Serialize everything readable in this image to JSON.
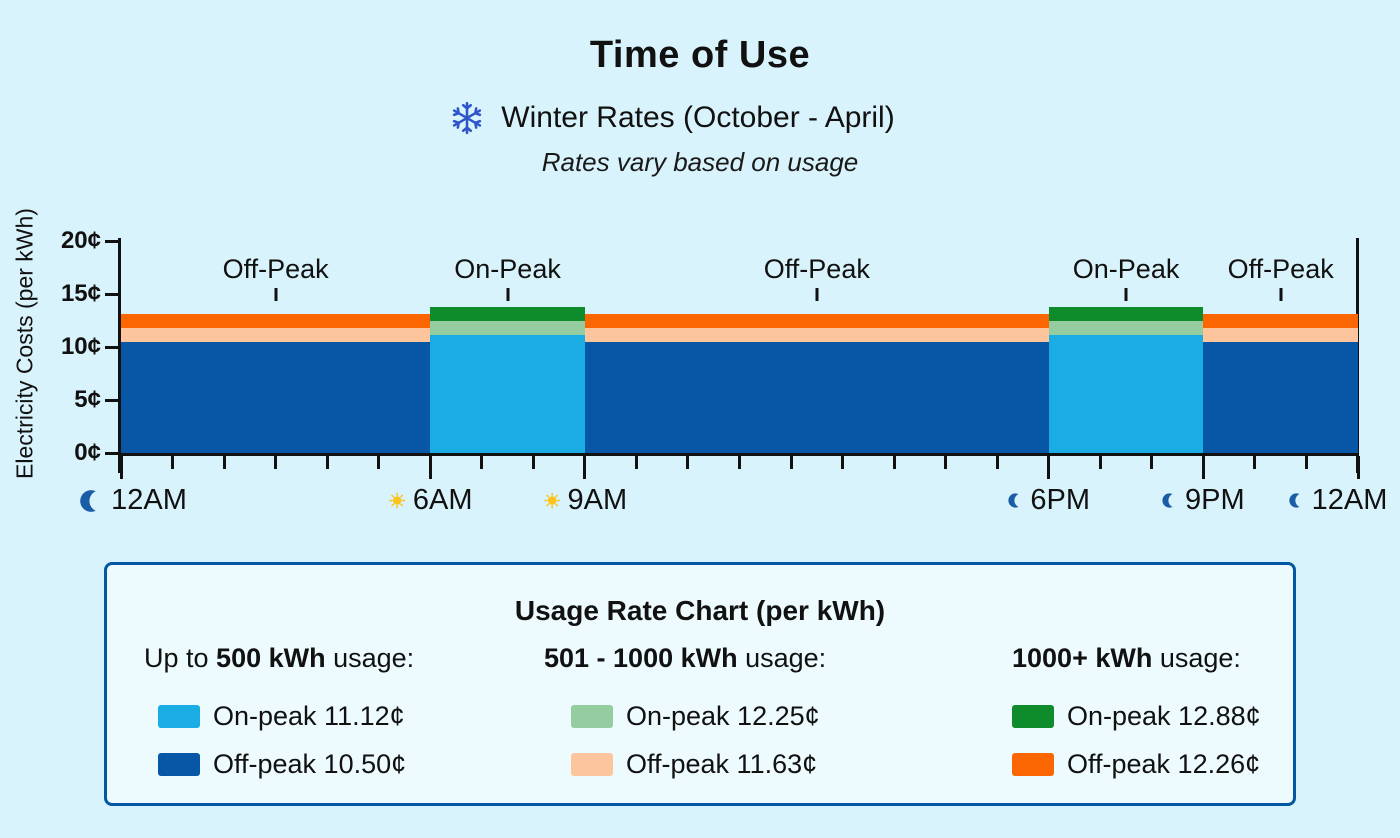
{
  "title": "Time of Use",
  "subtitle": {
    "icon": "snowflake-icon",
    "text": "Winter Rates (October - April)"
  },
  "note": "Rates vary based on usage",
  "colors": {
    "background": "#d8f3fb",
    "axis": "#111111",
    "moon": "#1b5ca7",
    "sun": "#fcc419",
    "snowflake": "#2f55cb",
    "legend_border": "#0457a3",
    "legend_background": "#edfbfe",
    "on_peak_tier1": "#1aade3",
    "on_peak_tier2": "#95cda1",
    "on_peak_tier3": "#0e8b2b",
    "off_peak_tier1": "#0757a6",
    "off_peak_tier2": "#fdc59e",
    "off_peak_tier3": "#fb6502"
  },
  "chart_data": {
    "type": "bar",
    "title": "Time of Use",
    "ylabel": "Electricity Costs (per kWh)",
    "ylim": [
      0,
      20
    ],
    "y_ticks": [
      {
        "value": 0,
        "label": "0¢"
      },
      {
        "value": 5,
        "label": "5¢"
      },
      {
        "value": 10,
        "label": "10¢"
      },
      {
        "value": 15,
        "label": "15¢"
      },
      {
        "value": 20,
        "label": "20¢"
      }
    ],
    "x_hours": [
      0,
      24
    ],
    "x_tick_every_hour": true,
    "x_labels": [
      {
        "hour": 0,
        "label": "12AM",
        "icon": "moon",
        "size": "large"
      },
      {
        "hour": 6,
        "label": "6AM",
        "icon": "sun",
        "size": "small"
      },
      {
        "hour": 9,
        "label": "9AM",
        "icon": "sun",
        "size": "small"
      },
      {
        "hour": 18,
        "label": "6PM",
        "icon": "moon",
        "size": "small"
      },
      {
        "hour": 21,
        "label": "9PM",
        "icon": "moon",
        "size": "small"
      },
      {
        "hour": 24,
        "label": "12AM",
        "icon": "moon",
        "size": "small"
      }
    ],
    "periods": [
      {
        "label": "Off-Peak",
        "kind": "off_peak",
        "start_hour": 0,
        "end_hour": 6
      },
      {
        "label": "On-Peak",
        "kind": "on_peak",
        "start_hour": 6,
        "end_hour": 9
      },
      {
        "label": "Off-Peak",
        "kind": "off_peak",
        "start_hour": 9,
        "end_hour": 18
      },
      {
        "label": "On-Peak",
        "kind": "on_peak",
        "start_hour": 18,
        "end_hour": 21
      },
      {
        "label": "Off-Peak",
        "kind": "off_peak",
        "start_hour": 21,
        "end_hour": 24
      }
    ],
    "tiers": [
      {
        "name": "Up to 500 kWh",
        "on_peak": 11.12,
        "off_peak": 10.5,
        "on_color_key": "on_peak_tier1",
        "off_color_key": "off_peak_tier1"
      },
      {
        "name": "501 - 1000 kWh",
        "on_peak": 12.25,
        "off_peak": 11.63,
        "on_color_key": "on_peak_tier2",
        "off_color_key": "off_peak_tier2"
      },
      {
        "name": "1000+ kWh",
        "on_peak": 12.88,
        "off_peak": 12.26,
        "on_color_key": "on_peak_tier3",
        "off_color_key": "off_peak_tier3"
      }
    ]
  },
  "legend": {
    "title": "Usage Rate Chart (per kWh)",
    "columns": [
      {
        "prefix": "Up to ",
        "bold": "500 kWh",
        "suffix": " usage:",
        "entries": [
          {
            "color_key": "on_peak_tier1",
            "label": "On-peak 11.12¢"
          },
          {
            "color_key": "off_peak_tier1",
            "label": "Off-peak 10.50¢"
          }
        ]
      },
      {
        "prefix": "",
        "bold": "501 - 1000 kWh",
        "suffix": " usage:",
        "entries": [
          {
            "color_key": "on_peak_tier2",
            "label": "On-peak 12.25¢"
          },
          {
            "color_key": "off_peak_tier2",
            "label": "Off-peak 11.63¢"
          }
        ]
      },
      {
        "prefix": "",
        "bold": "1000+ kWh",
        "suffix": " usage:",
        "entries": [
          {
            "color_key": "on_peak_tier3",
            "label": "On-peak 12.88¢"
          },
          {
            "color_key": "off_peak_tier3",
            "label": "Off-peak 12.26¢"
          }
        ]
      }
    ]
  }
}
